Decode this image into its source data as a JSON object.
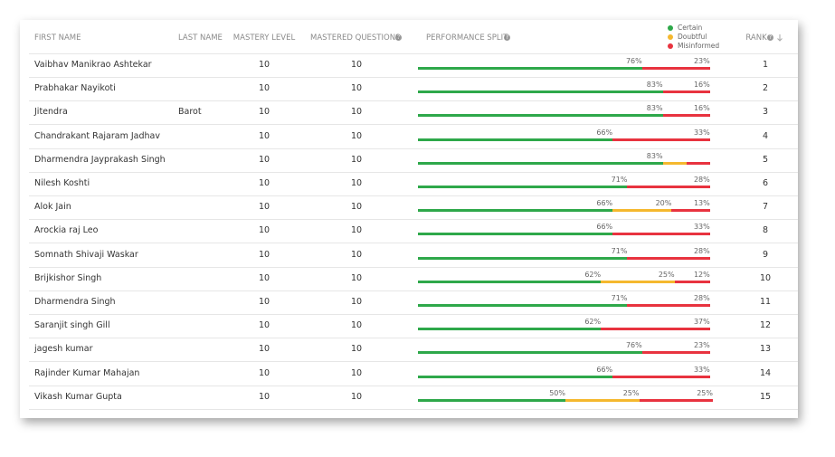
{
  "table": {
    "headers": [
      "FIRST NAME",
      "LAST NAME",
      "MASTERY LEVEL",
      "MASTERED QUESTIONS",
      "PERFORMANCE SPLIT",
      "RANK"
    ],
    "legend": [
      {
        "label": "Certain",
        "color": "#2ea84a"
      },
      {
        "label": "Doubtful",
        "color": "#f5b82e"
      },
      {
        "label": "Misinformed",
        "color": "#e8333f"
      }
    ],
    "rows": [
      {
        "first_name": "Vaibhav Manikrao Ashtekar",
        "last_name": null,
        "mastery_level": 10,
        "mastered_questions": 10,
        "split": {
          "values": [
            76,
            0,
            23
          ],
          "value_labels": [
            "76%",
            null,
            "23%"
          ]
        },
        "rank": 1
      },
      {
        "first_name": "Prabhakar Nayikoti",
        "last_name": null,
        "mastery_level": 10,
        "mastered_questions": 10,
        "split": {
          "values": [
            83,
            0,
            16
          ],
          "value_labels": [
            "83%",
            null,
            "16%"
          ]
        },
        "rank": 2
      },
      {
        "first_name": "Jitendra",
        "last_name": "Barot",
        "mastery_level": 10,
        "mastered_questions": 10,
        "split": {
          "values": [
            83,
            0,
            16
          ],
          "value_labels": [
            "83%",
            null,
            "16%"
          ]
        },
        "rank": 3
      },
      {
        "first_name": "Chandrakant Rajaram Jadhav",
        "last_name": null,
        "mastery_level": 10,
        "mastered_questions": 10,
        "split": {
          "values": [
            66,
            0,
            33
          ],
          "value_labels": [
            "66%",
            null,
            "33%"
          ]
        },
        "rank": 4
      },
      {
        "first_name": "Dharmendra Jayprakash Singh",
        "last_name": null,
        "mastery_level": 10,
        "mastered_questions": 10,
        "split": {
          "values": [
            83,
            8,
            8
          ],
          "value_labels": [
            "83%",
            null,
            null
          ]
        },
        "rank": 5
      },
      {
        "first_name": "Nilesh Koshti",
        "last_name": null,
        "mastery_level": 10,
        "mastered_questions": 10,
        "split": {
          "values": [
            71,
            0,
            28
          ],
          "value_labels": [
            "71%",
            null,
            "28%"
          ]
        },
        "rank": 6
      },
      {
        "first_name": "Alok Jain",
        "last_name": null,
        "mastery_level": 10,
        "mastered_questions": 10,
        "split": {
          "values": [
            66,
            20,
            13
          ],
          "value_labels": [
            "66%",
            "20%",
            "13%"
          ]
        },
        "rank": 7
      },
      {
        "first_name": "Arockia raj Leo",
        "last_name": null,
        "mastery_level": 10,
        "mastered_questions": 10,
        "split": {
          "values": [
            66,
            0,
            33
          ],
          "value_labels": [
            "66%",
            null,
            "33%"
          ]
        },
        "rank": 8
      },
      {
        "first_name": "Somnath Shivaji Waskar",
        "last_name": null,
        "mastery_level": 10,
        "mastered_questions": 10,
        "split": {
          "values": [
            71,
            0,
            28
          ],
          "value_labels": [
            "71%",
            null,
            "28%"
          ]
        },
        "rank": 9
      },
      {
        "first_name": "Brijkishor Singh",
        "last_name": null,
        "mastery_level": 10,
        "mastered_questions": 10,
        "split": {
          "values": [
            62,
            25,
            12
          ],
          "value_labels": [
            "62%",
            "25%",
            "12%"
          ]
        },
        "rank": 10
      },
      {
        "first_name": "Dharmendra Singh",
        "last_name": null,
        "mastery_level": 10,
        "mastered_questions": 10,
        "split": {
          "values": [
            71,
            0,
            28
          ],
          "value_labels": [
            "71%",
            null,
            "28%"
          ]
        },
        "rank": 11
      },
      {
        "first_name": "Saranjit singh Gill",
        "last_name": null,
        "mastery_level": 10,
        "mastered_questions": 10,
        "split": {
          "values": [
            62,
            0,
            37
          ],
          "value_labels": [
            "62%",
            null,
            "37%"
          ]
        },
        "rank": 12
      },
      {
        "first_name": "jagesh kumar",
        "last_name": null,
        "mastery_level": 10,
        "mastered_questions": 10,
        "split": {
          "values": [
            76,
            0,
            23
          ],
          "value_labels": [
            "76%",
            null,
            "23%"
          ]
        },
        "rank": 13
      },
      {
        "first_name": "Rajinder Kumar Mahajan",
        "last_name": null,
        "mastery_level": 10,
        "mastered_questions": 10,
        "split": {
          "values": [
            66,
            0,
            33
          ],
          "value_labels": [
            "66%",
            null,
            "33%"
          ]
        },
        "rank": 14
      },
      {
        "first_name": "Vikash Kumar Gupta",
        "last_name": null,
        "mastery_level": 10,
        "mastered_questions": 10,
        "split": {
          "values": [
            50,
            25,
            25
          ],
          "value_labels": [
            "50%",
            "25%",
            "25%"
          ]
        },
        "rank": 15
      }
    ]
  }
}
